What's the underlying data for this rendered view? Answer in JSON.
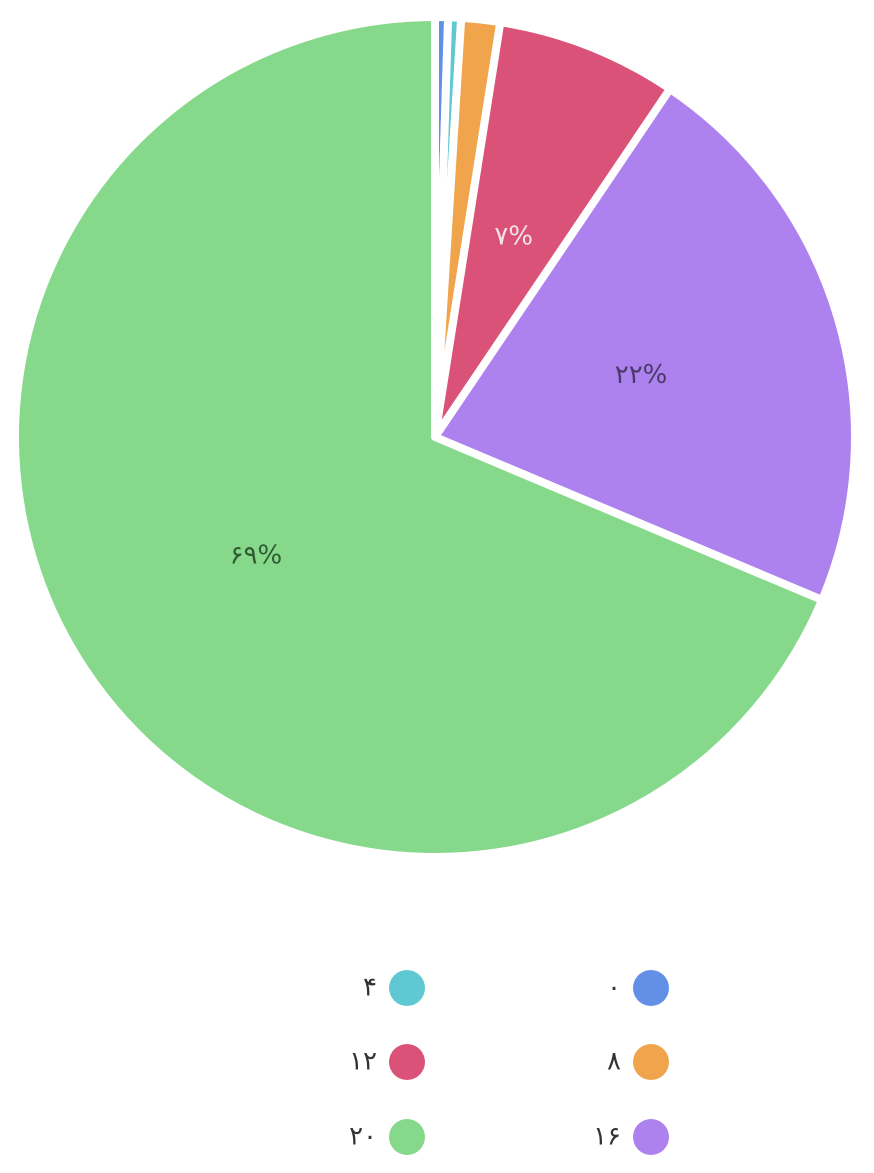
{
  "chart_data": {
    "type": "pie",
    "categories": [
      "۰",
      "۴",
      "۸",
      "۱۲",
      "۱۶",
      "۲۰"
    ],
    "values": [
      0.5,
      0.5,
      1.5,
      7,
      22,
      69
    ],
    "value_labels": [
      null,
      null,
      null,
      "۷%",
      "۲۲%",
      "۶۹%"
    ],
    "colors": [
      "#6190e6",
      "#5fc8d2",
      "#f0a44b",
      "#db5279",
      "#ad82ef",
      "#86d98a"
    ]
  }
}
